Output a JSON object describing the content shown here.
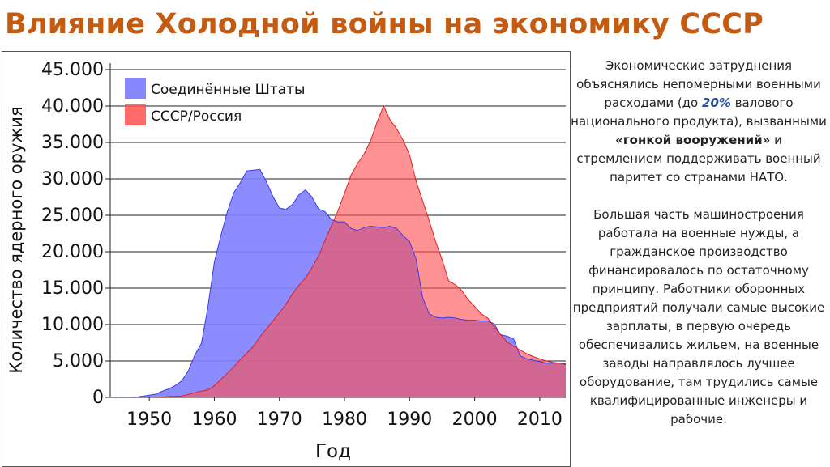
{
  "title": "Влияние Холодной войны на экономику СССР",
  "description": {
    "p1": {
      "a": "Экономические затруднения объяснялись непомерными военными расходами (до ",
      "pct": "20%",
      "b": " валового национального продукта), вызванными ",
      "bold": "«гонкой вооружений»",
      "c": " и стремлением поддерживать военный паритет со странами НАТО."
    },
    "p2": "Большая часть машиностроения работала на военные нужды, а гражданское производство финансировалось по остаточному принципу. Работники оборонных предприятий получали самые высокие зарплаты, в первую очередь обеспечивались жильем, на военные заводы направлялось лучшее оборудование, там трудились самые квалифицированные инженеры и рабочие."
  },
  "chart_data": {
    "type": "area",
    "xlabel": "Год",
    "ylabel": "Количество ядерного оружия",
    "xlim": [
      1944,
      2014
    ],
    "ylim": [
      0,
      45000
    ],
    "xticks": [
      1950,
      1960,
      1970,
      1980,
      1990,
      2000,
      2010
    ],
    "xtick_labels": [
      "1950",
      "1960",
      "1970",
      "1980",
      "1990",
      "2000",
      "2010"
    ],
    "yticks": [
      0,
      5000,
      10000,
      15000,
      20000,
      25000,
      30000,
      35000,
      40000,
      45000
    ],
    "ytick_labels": [
      "0",
      "5.000",
      "10.000",
      "15.000",
      "20.000",
      "25.000",
      "30.000",
      "35.000",
      "40.000",
      "45.000"
    ],
    "grid": "horizontal",
    "legend": "top-left",
    "series": [
      {
        "name": "Соединённые Штаты",
        "color": "#8080ff",
        "points": [
          [
            1944,
            0
          ],
          [
            1945,
            2
          ],
          [
            1946,
            9
          ],
          [
            1947,
            13
          ],
          [
            1948,
            50
          ],
          [
            1949,
            170
          ],
          [
            1950,
            300
          ],
          [
            1951,
            440
          ],
          [
            1952,
            840
          ],
          [
            1953,
            1170
          ],
          [
            1954,
            1630
          ],
          [
            1955,
            2280
          ],
          [
            1956,
            3620
          ],
          [
            1957,
            5830
          ],
          [
            1958,
            7400
          ],
          [
            1959,
            12300
          ],
          [
            1960,
            18600
          ],
          [
            1961,
            22200
          ],
          [
            1962,
            25500
          ],
          [
            1963,
            28100
          ],
          [
            1964,
            29500
          ],
          [
            1965,
            31100
          ],
          [
            1966,
            31200
          ],
          [
            1967,
            31300
          ],
          [
            1968,
            29600
          ],
          [
            1969,
            27600
          ],
          [
            1970,
            26000
          ],
          [
            1971,
            25800
          ],
          [
            1972,
            26500
          ],
          [
            1973,
            27800
          ],
          [
            1974,
            28500
          ],
          [
            1975,
            27500
          ],
          [
            1976,
            25900
          ],
          [
            1977,
            25500
          ],
          [
            1978,
            24400
          ],
          [
            1979,
            24100
          ],
          [
            1980,
            24100
          ],
          [
            1981,
            23200
          ],
          [
            1982,
            22900
          ],
          [
            1983,
            23300
          ],
          [
            1984,
            23500
          ],
          [
            1985,
            23400
          ],
          [
            1986,
            23300
          ],
          [
            1987,
            23500
          ],
          [
            1988,
            23200
          ],
          [
            1989,
            22200
          ],
          [
            1990,
            21400
          ],
          [
            1991,
            19000
          ],
          [
            1992,
            13700
          ],
          [
            1993,
            11500
          ],
          [
            1994,
            11000
          ],
          [
            1995,
            10900
          ],
          [
            1996,
            11000
          ],
          [
            1997,
            10900
          ],
          [
            1998,
            10700
          ],
          [
            1999,
            10600
          ],
          [
            2000,
            10600
          ],
          [
            2001,
            10500
          ],
          [
            2002,
            10500
          ],
          [
            2003,
            10100
          ],
          [
            2004,
            8600
          ],
          [
            2005,
            8400
          ],
          [
            2006,
            8000
          ],
          [
            2007,
            5700
          ],
          [
            2008,
            5300
          ],
          [
            2009,
            5100
          ],
          [
            2010,
            4900
          ],
          [
            2011,
            4700
          ],
          [
            2012,
            4700
          ],
          [
            2013,
            4700
          ],
          [
            2014,
            4600
          ]
        ]
      },
      {
        "name": "СССР/Россия",
        "color": "#ff5050",
        "points": [
          [
            1944,
            0
          ],
          [
            1948,
            0
          ],
          [
            1949,
            1
          ],
          [
            1950,
            5
          ],
          [
            1951,
            25
          ],
          [
            1952,
            50
          ],
          [
            1953,
            120
          ],
          [
            1954,
            150
          ],
          [
            1955,
            200
          ],
          [
            1956,
            400
          ],
          [
            1957,
            650
          ],
          [
            1958,
            870
          ],
          [
            1959,
            1050
          ],
          [
            1960,
            1600
          ],
          [
            1961,
            2450
          ],
          [
            1962,
            3300
          ],
          [
            1963,
            4200
          ],
          [
            1964,
            5200
          ],
          [
            1965,
            6100
          ],
          [
            1966,
            7000
          ],
          [
            1967,
            8300
          ],
          [
            1968,
            9400
          ],
          [
            1969,
            10500
          ],
          [
            1970,
            11600
          ],
          [
            1971,
            12800
          ],
          [
            1972,
            14200
          ],
          [
            1973,
            15400
          ],
          [
            1974,
            16400
          ],
          [
            1975,
            17800
          ],
          [
            1976,
            19400
          ],
          [
            1977,
            21500
          ],
          [
            1978,
            23600
          ],
          [
            1979,
            25600
          ],
          [
            1980,
            28000
          ],
          [
            1981,
            30500
          ],
          [
            1982,
            32100
          ],
          [
            1983,
            33400
          ],
          [
            1984,
            35200
          ],
          [
            1985,
            37800
          ],
          [
            1986,
            40000
          ],
          [
            1987,
            38100
          ],
          [
            1988,
            36900
          ],
          [
            1989,
            35300
          ],
          [
            1990,
            33300
          ],
          [
            1991,
            29700
          ],
          [
            1992,
            27000
          ],
          [
            1993,
            24300
          ],
          [
            1994,
            21400
          ],
          [
            1995,
            18900
          ],
          [
            1996,
            16000
          ],
          [
            1997,
            15500
          ],
          [
            1998,
            14700
          ],
          [
            1999,
            13400
          ],
          [
            2000,
            12500
          ],
          [
            2001,
            11500
          ],
          [
            2002,
            10900
          ],
          [
            2003,
            9700
          ],
          [
            2004,
            8600
          ],
          [
            2005,
            7600
          ],
          [
            2006,
            7000
          ],
          [
            2007,
            6500
          ],
          [
            2008,
            6000
          ],
          [
            2009,
            5600
          ],
          [
            2010,
            5300
          ],
          [
            2011,
            5000
          ],
          [
            2012,
            4800
          ],
          [
            2013,
            4700
          ],
          [
            2014,
            4500
          ]
        ]
      }
    ]
  }
}
